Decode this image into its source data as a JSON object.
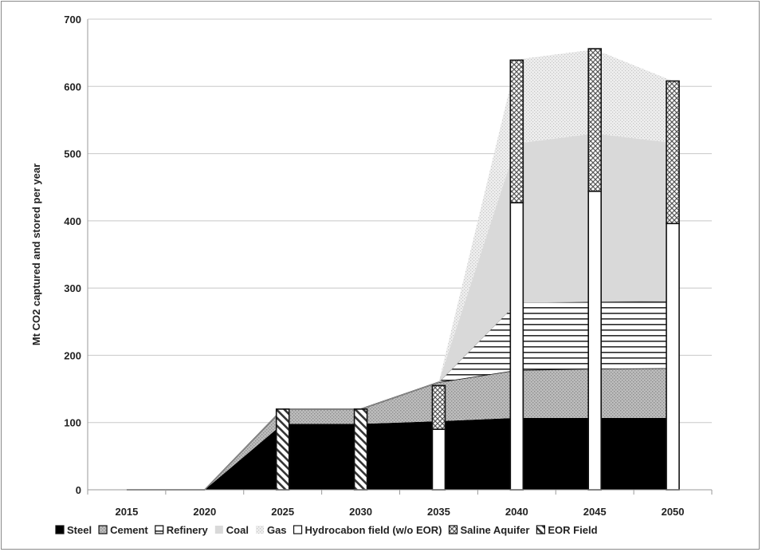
{
  "chart_data": {
    "type": "area",
    "title": "",
    "xlabel": "",
    "ylabel": "Mt CO2 captured and stored per year",
    "ylim": [
      0,
      700
    ],
    "yticks": [
      0,
      100,
      200,
      300,
      400,
      500,
      600,
      700
    ],
    "categories": [
      "2015",
      "2020",
      "2025",
      "2030",
      "2035",
      "2040",
      "2045",
      "2050"
    ],
    "grid": "horizontal",
    "legend_position": "bottom",
    "capture_series": [
      {
        "name": "Steel",
        "style": "black-solid",
        "values": [
          0,
          0,
          98,
          98,
          102,
          107,
          107,
          107
        ]
      },
      {
        "name": "Cement",
        "style": "grey-dotted",
        "values": [
          0,
          0,
          22,
          22,
          58,
          71,
          73,
          74
        ]
      },
      {
        "name": "Refinery",
        "style": "horizontal-lines",
        "values": [
          0,
          0,
          0,
          0,
          0,
          100,
          100,
          100
        ]
      },
      {
        "name": "Coal",
        "style": "light-grey",
        "values": [
          0,
          0,
          0,
          0,
          0,
          237,
          250,
          235
        ]
      },
      {
        "name": "Gas",
        "style": "light-dotted",
        "values": [
          0,
          0,
          0,
          0,
          0,
          125,
          125,
          92
        ]
      }
    ],
    "storage_series": [
      {
        "name": "Hydrocabon field (w/o EOR)",
        "style": "white-outline",
        "values": [
          0,
          0,
          0,
          0,
          90,
          427,
          444,
          396
        ]
      },
      {
        "name": "Saline Aquifer",
        "style": "crosshatch",
        "values": [
          0,
          0,
          0,
          0,
          65,
          212,
          212,
          212
        ]
      },
      {
        "name": "EOR Field",
        "style": "diagonal-hatch",
        "values": [
          0,
          0,
          120,
          120,
          0,
          0,
          0,
          0
        ]
      }
    ],
    "legend": [
      {
        "label": "Steel",
        "style": "black-solid"
      },
      {
        "label": "Cement",
        "style": "grey-dotted"
      },
      {
        "label": "Refinery",
        "style": "horizontal-lines"
      },
      {
        "label": "Coal",
        "style": "light-grey"
      },
      {
        "label": "Gas",
        "style": "light-dotted"
      },
      {
        "label": "Hydrocabon field (w/o EOR)",
        "style": "white-outline"
      },
      {
        "label": "Saline Aquifer",
        "style": "crosshatch"
      },
      {
        "label": "EOR Field",
        "style": "diagonal-hatch"
      }
    ]
  }
}
